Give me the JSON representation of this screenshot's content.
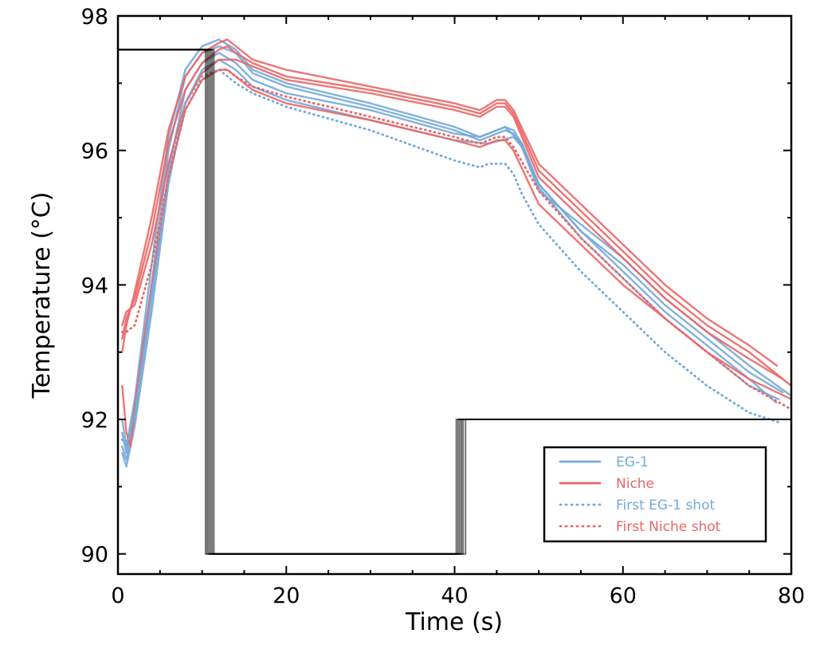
{
  "chart_data": {
    "type": "line",
    "title": "",
    "xlabel": "Time (s)",
    "ylabel": "Temperature (°C)",
    "xlim": [
      0,
      80
    ],
    "ylim": [
      89.7,
      98
    ],
    "xticks": [
      0,
      20,
      40,
      60,
      80
    ],
    "yticks": [
      90,
      92,
      94,
      96,
      98
    ],
    "grid": false,
    "legend_position": "lower-right",
    "colors": {
      "eg1": "#74a9d8",
      "niche": "#ec6565",
      "setpoint": "#000000"
    },
    "series": [
      {
        "name": "EG-1",
        "group": "eg1",
        "style": "solid",
        "x": [
          0.5,
          1,
          2,
          4,
          6,
          8,
          10,
          12,
          14,
          16,
          20,
          30,
          40,
          43,
          45,
          46,
          47,
          48,
          50,
          55,
          60,
          65,
          70,
          75,
          78.2
        ],
        "y": [
          92,
          91.6,
          92.3,
          94.3,
          96.2,
          97.2,
          97.55,
          97.65,
          97.5,
          97.2,
          97,
          96.7,
          96.35,
          96.2,
          96.3,
          96.35,
          96.3,
          96.1,
          95.5,
          94.8,
          94.2,
          93.6,
          93.1,
          92.6,
          92.25
        ]
      },
      {
        "name": "EG-1",
        "group": "eg1",
        "style": "solid",
        "x": [
          0.5,
          1,
          2,
          4,
          6,
          8,
          10,
          12,
          14,
          16,
          20,
          30,
          40,
          43,
          45,
          46,
          47,
          48,
          50,
          55,
          60,
          65,
          70,
          75,
          78.5
        ],
        "y": [
          91.8,
          91.5,
          92.2,
          94,
          96,
          97.1,
          97.45,
          97.55,
          97.45,
          97.15,
          96.95,
          96.65,
          96.3,
          96.15,
          96.25,
          96.3,
          96.25,
          96.05,
          95.45,
          94.7,
          94.1,
          93.5,
          93,
          92.5,
          92.3
        ]
      },
      {
        "name": "EG-1",
        "group": "eg1",
        "style": "solid",
        "x": [
          0.5,
          1,
          2,
          4,
          6,
          8,
          10,
          12,
          14,
          16,
          20,
          30,
          40,
          43,
          46,
          48,
          50,
          55,
          60,
          65,
          70,
          75,
          79
        ],
        "y": [
          91.6,
          91.4,
          92,
          93.8,
          95.7,
          96.9,
          97.3,
          97.45,
          97.3,
          97.05,
          96.85,
          96.6,
          96.25,
          96.2,
          96.35,
          96.1,
          95.5,
          94.8,
          94.3,
          93.7,
          93.2,
          92.7,
          92.4
        ]
      },
      {
        "name": "EG-1",
        "group": "eg1",
        "style": "solid",
        "x": [
          0.5,
          1,
          2,
          4,
          6,
          8,
          10,
          12,
          14,
          16,
          20,
          30,
          40,
          44,
          47,
          48,
          50,
          55,
          60,
          65,
          70,
          75,
          80
        ],
        "y": [
          91.5,
          91.3,
          91.9,
          93.6,
          95.5,
          96.7,
          97.2,
          97.35,
          97.2,
          96.95,
          96.75,
          96.45,
          96.15,
          96.1,
          96.2,
          96.05,
          95.4,
          94.9,
          94.4,
          93.8,
          93.3,
          92.8,
          92.35
        ]
      },
      {
        "name": "Niche",
        "group": "niche",
        "style": "solid",
        "x": [
          0.5,
          1,
          2,
          4,
          6,
          8,
          10,
          12,
          13,
          14,
          16,
          20,
          30,
          40,
          43,
          45,
          46,
          47,
          50,
          55,
          60,
          65,
          70,
          75,
          78.3
        ],
        "y": [
          93,
          93.4,
          93.9,
          95,
          96.3,
          97.1,
          97.45,
          97.6,
          97.65,
          97.55,
          97.35,
          97.2,
          96.95,
          96.7,
          96.6,
          96.75,
          96.75,
          96.6,
          95.8,
          95.2,
          94.6,
          94,
          93.5,
          93.1,
          92.8
        ]
      },
      {
        "name": "Niche",
        "group": "niche",
        "style": "solid",
        "x": [
          0.5,
          1,
          2,
          4,
          6,
          8,
          10,
          12,
          13,
          14,
          16,
          20,
          30,
          40,
          43,
          45,
          46,
          47,
          50,
          55,
          60,
          65,
          70,
          75,
          80
        ],
        "y": [
          93.2,
          93.5,
          93.8,
          94.8,
          96.1,
          96.9,
          97.3,
          97.5,
          97.55,
          97.45,
          97.3,
          97.1,
          96.9,
          96.65,
          96.55,
          96.7,
          96.7,
          96.55,
          95.7,
          95.1,
          94.5,
          93.9,
          93.4,
          93,
          92.5
        ]
      },
      {
        "name": "Niche",
        "group": "niche",
        "style": "solid",
        "x": [
          0.5,
          1,
          2,
          4,
          6,
          8,
          10,
          12,
          14,
          16,
          20,
          30,
          40,
          43,
          45,
          46,
          47,
          50,
          55,
          60,
          65,
          70,
          75,
          79
        ],
        "y": [
          93.4,
          93.6,
          93.7,
          94.6,
          95.8,
          96.7,
          97.15,
          97.35,
          97.35,
          97.25,
          97.05,
          96.85,
          96.6,
          96.5,
          96.65,
          96.65,
          96.5,
          95.6,
          95,
          94.4,
          93.8,
          93.3,
          92.9,
          92.6
        ]
      },
      {
        "name": "Niche",
        "group": "niche",
        "style": "solid",
        "x": [
          0.5,
          1,
          1.5,
          2,
          4,
          6,
          8,
          10,
          12,
          13,
          14,
          16,
          20,
          30,
          40,
          43,
          45,
          46,
          47,
          50,
          55,
          60,
          65,
          70,
          75,
          80
        ],
        "y": [
          92.5,
          91.8,
          91.6,
          92.2,
          94,
          95.6,
          96.6,
          97.05,
          97.2,
          97.2,
          97.1,
          96.9,
          96.7,
          96.45,
          96.15,
          96.05,
          96.15,
          96.15,
          96,
          95.2,
          94.6,
          94,
          93.5,
          93,
          92.6,
          92.3
        ]
      },
      {
        "name": "First EG-1 shot",
        "group": "eg1",
        "style": "dotted",
        "x": [
          0.5,
          1,
          2,
          4,
          6,
          8,
          10,
          12,
          14,
          16,
          20,
          30,
          40,
          43,
          44,
          46,
          47,
          48,
          50,
          55,
          60,
          65,
          70,
          75,
          78.7
        ],
        "y": [
          91.7,
          91.6,
          92.1,
          93.9,
          95.6,
          96.7,
          97.1,
          97.2,
          97.0,
          96.85,
          96.65,
          96.3,
          95.85,
          95.75,
          95.8,
          95.8,
          95.65,
          95.35,
          94.9,
          94.2,
          93.6,
          93.0,
          92.5,
          92.1,
          91.95
        ]
      },
      {
        "name": "First Niche shot",
        "group": "niche",
        "style": "dotted",
        "x": [
          0.5,
          1,
          2,
          4,
          6,
          8,
          10,
          12,
          13,
          14,
          16,
          20,
          30,
          40,
          43,
          45,
          46,
          47,
          50,
          55,
          60,
          65,
          70,
          75,
          80
        ],
        "y": [
          93.3,
          93.3,
          93.4,
          94.3,
          95.6,
          96.6,
          97.05,
          97.2,
          97.2,
          97.1,
          96.95,
          96.8,
          96.5,
          96.2,
          96.1,
          96.2,
          96.2,
          96.05,
          95.4,
          94.7,
          94.1,
          93.5,
          93,
          92.5,
          92.15
        ]
      }
    ],
    "setpoint": {
      "name": "Temperature setpoint",
      "initial": 97.5,
      "low": 90,
      "final": 92,
      "drop_times": [
        10.4,
        10.6,
        10.8,
        11.0,
        11.2,
        11.4
      ],
      "rise_times": [
        40.2,
        40.4,
        40.6,
        40.8,
        41.0,
        41.3
      ]
    },
    "legend": [
      {
        "label": "EG-1",
        "group": "eg1",
        "style": "solid"
      },
      {
        "label": "Niche",
        "group": "niche",
        "style": "solid"
      },
      {
        "label": "First EG-1 shot",
        "group": "eg1",
        "style": "dotted"
      },
      {
        "label": "First Niche shot",
        "group": "niche",
        "style": "dotted"
      }
    ]
  }
}
